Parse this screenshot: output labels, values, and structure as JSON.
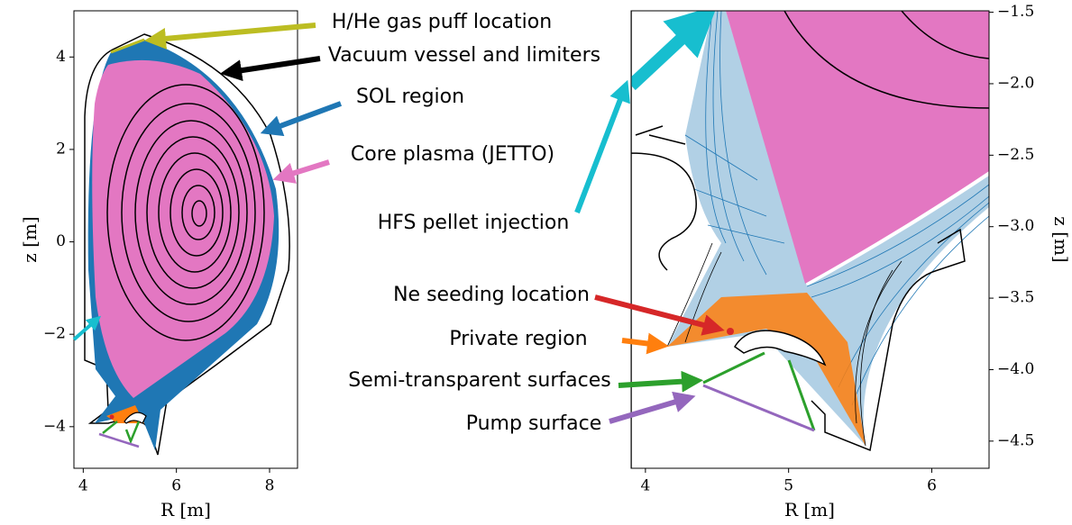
{
  "panels": [
    {
      "xlabel": "R [m]",
      "ylabel": "z [m]",
      "xlim": [
        3.8,
        8.6
      ],
      "ylim": [
        -4.9,
        5.0
      ],
      "xticks": [
        4,
        6,
        8
      ],
      "yticks": [
        {
          "value": -4,
          "label": "−4"
        },
        {
          "value": -2,
          "label": "−2"
        },
        0,
        2,
        4
      ]
    },
    {
      "xlabel": "R [m]",
      "ylabel": "z [m]",
      "xlim": [
        3.9,
        6.4
      ],
      "ylim": [
        -4.69,
        -1.49
      ],
      "xticks": [
        4,
        5,
        6
      ],
      "yticks": [
        {
          "value": -4.5,
          "label": "−4.5"
        },
        {
          "value": -4.0,
          "label": "−4.0"
        },
        {
          "value": -3.5,
          "label": "−3.5"
        },
        {
          "value": -3.0,
          "label": "−3.0"
        },
        {
          "value": -2.5,
          "label": "−2.5"
        },
        {
          "value": -2.0,
          "label": "−2.0"
        },
        {
          "value": -1.5,
          "label": "−1.5"
        }
      ]
    }
  ],
  "annotations": [
    {
      "text": "H/He gas puff location"
    },
    {
      "text": "Vacuum vessel and limiters"
    },
    {
      "text": "SOL region"
    },
    {
      "text": "Core plasma (JETTO)"
    },
    {
      "text": "HFS pellet injection"
    },
    {
      "text": "Ne seeding location"
    },
    {
      "text": "Private region"
    },
    {
      "text": "Semi-transparent surfaces"
    },
    {
      "text": "Pump surface"
    }
  ]
}
